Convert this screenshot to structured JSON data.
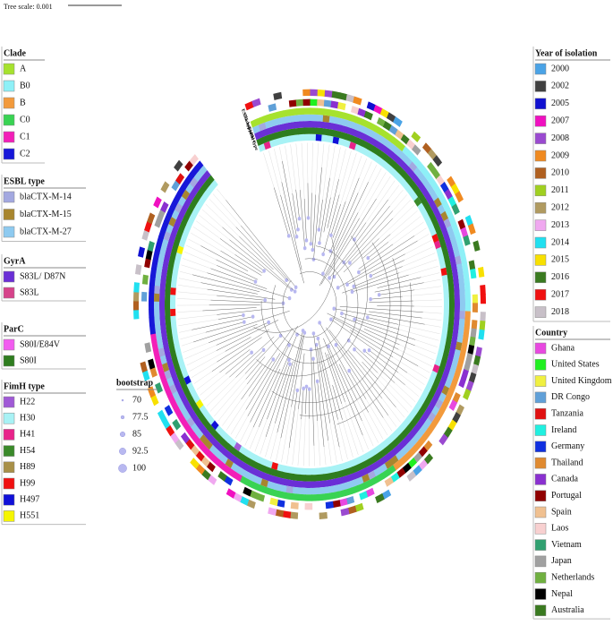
{
  "tree_scale": "Tree scale: 0.001",
  "ring_labels": [
    "FimH type",
    "ParC",
    "GyrA",
    "ESBL type",
    "Clade"
  ],
  "legends": {
    "clade": {
      "title": "Clade",
      "items": [
        {
          "label": "A",
          "color": "#a6e22e"
        },
        {
          "label": "B0",
          "color": "#8ef0f7"
        },
        {
          "label": "B",
          "color": "#f29a3c"
        },
        {
          "label": "C0",
          "color": "#39d353"
        },
        {
          "label": "C1",
          "color": "#f21fb8"
        },
        {
          "label": "C2",
          "color": "#1717d9"
        }
      ]
    },
    "esbl": {
      "title": "ESBL type",
      "items": [
        {
          "label": "blaCTX-M-14",
          "color": "#a3a8e0"
        },
        {
          "label": "blaCTX-M-15",
          "color": "#a8862e"
        },
        {
          "label": "blaCTX-M-27",
          "color": "#8ecaf0"
        }
      ]
    },
    "gyra": {
      "title": "GyrA",
      "items": [
        {
          "label": "S83L/ D87N",
          "color": "#6a2fd6"
        },
        {
          "label": "S83L",
          "color": "#d6438a"
        }
      ]
    },
    "parc": {
      "title": "ParC",
      "items": [
        {
          "label": "S80I/E84V",
          "color": "#f25cf0"
        },
        {
          "label": "S80I",
          "color": "#2e7d1f"
        }
      ]
    },
    "fimh": {
      "title": "FimH type",
      "items": [
        {
          "label": "H22",
          "color": "#a05ad6"
        },
        {
          "label": "H30",
          "color": "#a8f2f5"
        },
        {
          "label": "H41",
          "color": "#e8238a"
        },
        {
          "label": "H54",
          "color": "#3a8a2a"
        },
        {
          "label": "H89",
          "color": "#a89048"
        },
        {
          "label": "H99",
          "color": "#f01010"
        },
        {
          "label": "H497",
          "color": "#1010d8"
        },
        {
          "label": "H551",
          "color": "#f5f500"
        }
      ]
    },
    "bootstrap": {
      "title": "bootstrap",
      "items": [
        "70",
        "77.5",
        "85",
        "92.5",
        "100"
      ]
    },
    "year": {
      "title": "Year of isolation",
      "items": [
        {
          "label": "2000",
          "color": "#4aa3e6"
        },
        {
          "label": "2002",
          "color": "#404040"
        },
        {
          "label": "2005",
          "color": "#1010d0"
        },
        {
          "label": "2007",
          "color": "#f010c0"
        },
        {
          "label": "2008",
          "color": "#9a4ad0"
        },
        {
          "label": "2009",
          "color": "#f08a20"
        },
        {
          "label": "2010",
          "color": "#b06020"
        },
        {
          "label": "2011",
          "color": "#a0d020"
        },
        {
          "label": "2012",
          "color": "#b09a60"
        },
        {
          "label": "2013",
          "color": "#f0a8f0"
        },
        {
          "label": "2014",
          "color": "#20e0f0"
        },
        {
          "label": "2015",
          "color": "#f8e000"
        },
        {
          "label": "2016",
          "color": "#3a7a20"
        },
        {
          "label": "2017",
          "color": "#f01010"
        },
        {
          "label": "2018",
          "color": "#c8c0c8"
        }
      ]
    },
    "country": {
      "title": "Country",
      "items": [
        {
          "label": "Ghana",
          "color": "#e848e0"
        },
        {
          "label": "United States",
          "color": "#20f020"
        },
        {
          "label": "United Kingdom",
          "color": "#f0f040"
        },
        {
          "label": "DR Congo",
          "color": "#60a0d8"
        },
        {
          "label": "Tanzania",
          "color": "#e01010"
        },
        {
          "label": "Ireland",
          "color": "#20f0e0"
        },
        {
          "label": "Germany",
          "color": "#1030e0"
        },
        {
          "label": "Thailand",
          "color": "#e08a30"
        },
        {
          "label": "Canada",
          "color": "#8a30d0"
        },
        {
          "label": "Portugal",
          "color": "#900000"
        },
        {
          "label": "Spain",
          "color": "#f0c090"
        },
        {
          "label": "Laos",
          "color": "#f8d0d0"
        },
        {
          "label": "Vietnam",
          "color": "#30a070"
        },
        {
          "label": "Japan",
          "color": "#a0a0a0"
        },
        {
          "label": "Netherlands",
          "color": "#70b040"
        },
        {
          "label": "Nepal",
          "color": "#000000"
        },
        {
          "label": "Australia",
          "color": "#3a7a20"
        }
      ]
    }
  }
}
